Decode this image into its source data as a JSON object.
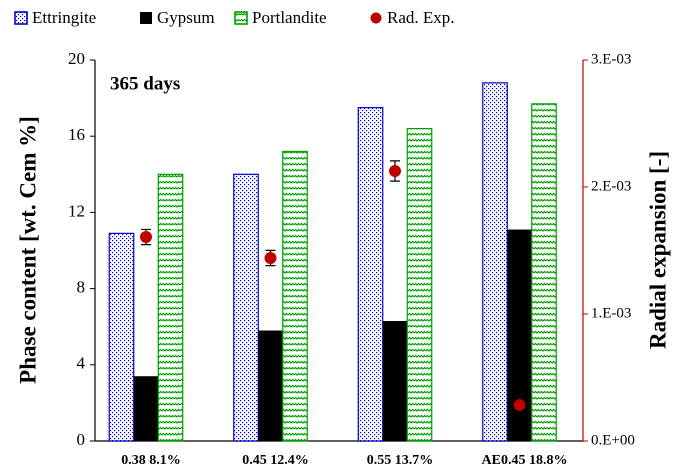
{
  "chart_data": {
    "type": "bar",
    "annotation": "365 days",
    "y_label": "Phase content [wt. Cem %]",
    "y2_label": "Radial expansion  [-]",
    "categories": [
      "0.38  8.1%",
      "0.45  12.4%",
      "0.55  13.7%",
      "AE0.45  18.8%"
    ],
    "series": [
      {
        "name": "Ettringite",
        "color": "#0000cc",
        "pattern": "dots",
        "values": [
          10.9,
          14.0,
          17.5,
          18.8
        ]
      },
      {
        "name": "Gypsum",
        "color": "#000000",
        "pattern": "solid",
        "values": [
          3.4,
          5.8,
          6.3,
          11.1
        ]
      },
      {
        "name": "Portlandite",
        "color": "#00a000",
        "pattern": "zigzag",
        "values": [
          14.0,
          15.2,
          16.4,
          17.7
        ]
      },
      {
        "name": "Rad. Exp.",
        "color": "#c00000",
        "axis": "y2",
        "marker": "circle",
        "values": [
          0.001606,
          0.001441,
          0.002126,
          0.000283
        ],
        "errors": [
          6e-05,
          6e-05,
          8e-05,
          8e-05
        ]
      }
    ],
    "ylim": [
      0,
      20
    ],
    "yticks": [
      0,
      4,
      8,
      12,
      16,
      20
    ],
    "y2lim": [
      0,
      0.003
    ],
    "y2ticks": [
      {
        "value": 0,
        "label": "0.E+00"
      },
      {
        "value": 0.001,
        "label": "1.E-03"
      },
      {
        "value": 0.002,
        "label": "2.E-03"
      },
      {
        "value": 0.003,
        "label": "3.E-03"
      }
    ],
    "y2_color": "#c00000",
    "legend": "top"
  }
}
